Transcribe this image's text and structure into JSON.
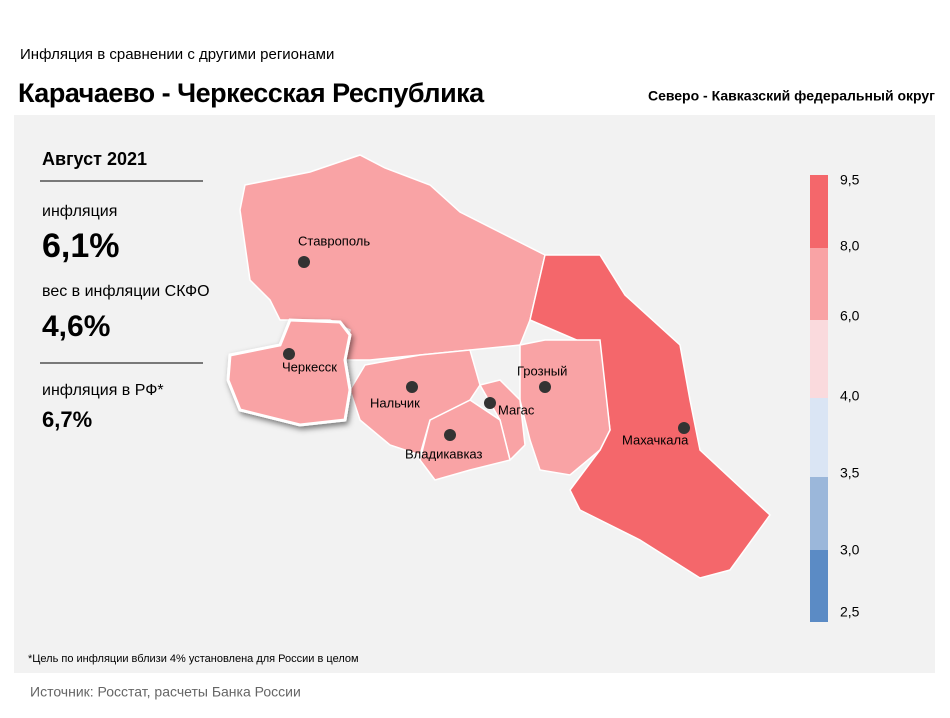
{
  "header": {
    "subtitle": "Инфляция  в сравнении  с другими  регионами",
    "title": "Карачаево - Черкесская Республика",
    "district": "Северо - Кавказский федеральный округ"
  },
  "panel": {
    "period": "Август 2021",
    "inflation_label": "инфляция",
    "inflation_value": "6,1%",
    "weight_label": "вес в инфляции  СКФО",
    "weight_value": "4,6%",
    "russia_label": "инфляция  в РФ*",
    "russia_value": "6,7%"
  },
  "map": {
    "cities": [
      "Ставрополь",
      "Черкесск",
      "Нальчик",
      "Магас",
      "Владикавказ",
      "Грозный",
      "Махачкала"
    ]
  },
  "legend": {
    "ticks": [
      "9,5",
      "8,0",
      "6,0",
      "4,0",
      "3,5",
      "3,0",
      "2,5"
    ]
  },
  "footnote": "*Цель по инфляции вблизи 4% установлена для России в целом",
  "source": "Источник: Росстат, расчеты Банка России"
}
